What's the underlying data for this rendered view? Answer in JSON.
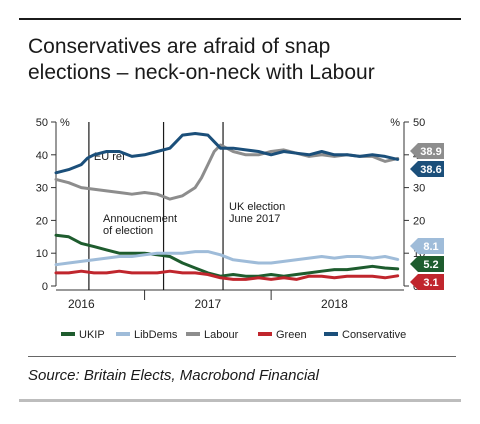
{
  "title_line1": "Conservatives are afraid of snap",
  "title_line2": "elections – neck-on-neck with Labour",
  "source": "Source: Britain Elects, Macrobond Financial",
  "chart_data": {
    "type": "line",
    "ylim": [
      0,
      50
    ],
    "yticks": [
      0,
      10,
      20,
      30,
      40,
      50
    ],
    "left_unit": "%",
    "right_unit": "%",
    "xlim": [
      2015.8,
      2018.55
    ],
    "xticks": [
      {
        "label": "2016",
        "x": 2016.0
      },
      {
        "label": "2017",
        "x": 2017.0
      },
      {
        "label": "2018",
        "x": 2018.0
      }
    ],
    "year_boundaries": [
      2016.5,
      2017.5
    ],
    "grid": false,
    "legend_position": "bottom",
    "events": [
      {
        "x": 2016.06,
        "label": "EU ref"
      },
      {
        "x": 2016.65,
        "label": "Annoucnement of election"
      },
      {
        "x": 2017.12,
        "label": "UK election June 2017"
      }
    ],
    "series": [
      {
        "name": "UKIP",
        "color": "#1e5c2e",
        "last_label": "5.2",
        "x": [
          2015.8,
          2015.9,
          2016.0,
          2016.1,
          2016.2,
          2016.3,
          2016.4,
          2016.5,
          2016.6,
          2016.7,
          2016.8,
          2016.9,
          2017.0,
          2017.1,
          2017.2,
          2017.3,
          2017.4,
          2017.5,
          2017.6,
          2017.7,
          2017.8,
          2017.9,
          2018.0,
          2018.1,
          2018.2,
          2018.3,
          2018.4,
          2018.5
        ],
        "y": [
          15.5,
          15,
          13,
          12,
          11,
          10,
          10,
          10,
          9.5,
          9,
          7,
          5.5,
          4,
          3,
          3.5,
          3,
          3,
          3.5,
          3,
          3.5,
          4,
          4.5,
          5,
          5,
          5.5,
          6,
          5.5,
          5.2
        ]
      },
      {
        "name": "LibDems",
        "color": "#9fbcd9",
        "last_label": "8.1",
        "x": [
          2015.8,
          2015.9,
          2016.0,
          2016.1,
          2016.2,
          2016.3,
          2016.4,
          2016.5,
          2016.6,
          2016.7,
          2016.8,
          2016.9,
          2017.0,
          2017.1,
          2017.2,
          2017.3,
          2017.4,
          2017.5,
          2017.6,
          2017.7,
          2017.8,
          2017.9,
          2018.0,
          2018.1,
          2018.2,
          2018.3,
          2018.4,
          2018.5
        ],
        "y": [
          6.5,
          7,
          7.5,
          8,
          8.5,
          9,
          9,
          9.5,
          10,
          10,
          10,
          10.5,
          10.5,
          9.5,
          8,
          7.5,
          7,
          7,
          7.5,
          8,
          8.5,
          9,
          8.5,
          9,
          9,
          8.5,
          9,
          8.1
        ]
      },
      {
        "name": "Labour",
        "color": "#8d8d8d",
        "last_label": "38.9",
        "x": [
          2015.8,
          2015.9,
          2016.0,
          2016.1,
          2016.2,
          2016.3,
          2016.4,
          2016.5,
          2016.6,
          2016.7,
          2016.8,
          2016.9,
          2016.95,
          2017.0,
          2017.05,
          2017.1,
          2017.15,
          2017.2,
          2017.3,
          2017.4,
          2017.5,
          2017.6,
          2017.7,
          2017.8,
          2017.9,
          2018.0,
          2018.1,
          2018.2,
          2018.3,
          2018.4,
          2018.5
        ],
        "y": [
          32.5,
          31.5,
          30,
          29.5,
          29,
          28.5,
          28,
          28.5,
          28,
          26.5,
          27.5,
          30,
          33,
          37,
          41,
          43,
          42,
          41,
          40,
          40,
          41,
          41.5,
          40.5,
          39.5,
          40,
          39.5,
          40,
          39.5,
          39.5,
          38,
          38.9
        ]
      },
      {
        "name": "Green",
        "color": "#c0262d",
        "last_label": "3.1",
        "x": [
          2015.8,
          2015.9,
          2016.0,
          2016.1,
          2016.2,
          2016.3,
          2016.4,
          2016.5,
          2016.6,
          2016.7,
          2016.8,
          2016.9,
          2017.0,
          2017.1,
          2017.2,
          2017.3,
          2017.4,
          2017.5,
          2017.6,
          2017.7,
          2017.8,
          2017.9,
          2018.0,
          2018.1,
          2018.2,
          2018.3,
          2018.4,
          2018.5
        ],
        "y": [
          4,
          4,
          4.5,
          4,
          4,
          4.5,
          4,
          4,
          4,
          4.5,
          4,
          4,
          3.5,
          2.5,
          2,
          2,
          2.5,
          2,
          2.5,
          2,
          3,
          3,
          2.5,
          3,
          3,
          3,
          2.5,
          3.1
        ]
      },
      {
        "name": "Conservative",
        "color": "#1b4f7a",
        "last_label": "38.6",
        "x": [
          2015.8,
          2015.9,
          2016.0,
          2016.05,
          2016.1,
          2016.2,
          2016.3,
          2016.4,
          2016.5,
          2016.6,
          2016.7,
          2016.75,
          2016.8,
          2016.9,
          2017.0,
          2017.05,
          2017.1,
          2017.2,
          2017.3,
          2017.4,
          2017.5,
          2017.6,
          2017.7,
          2017.8,
          2017.9,
          2018.0,
          2018.1,
          2018.2,
          2018.3,
          2018.4,
          2018.5
        ],
        "y": [
          34.5,
          35.5,
          37,
          39,
          40,
          41,
          41,
          39.5,
          40,
          41,
          42,
          44,
          46,
          46.5,
          46,
          44,
          42,
          42,
          41.5,
          41,
          40,
          41,
          40.5,
          40,
          41,
          40,
          40,
          39.5,
          40,
          39.5,
          38.6
        ]
      }
    ]
  }
}
